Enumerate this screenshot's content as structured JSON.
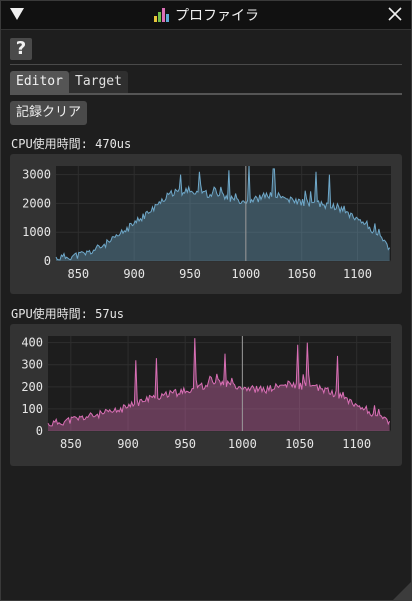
{
  "window": {
    "title": "プロファイラ",
    "app_icon": "bar-chart-icon",
    "collapse_icon": "triangle-down-icon",
    "close_icon": "close-icon"
  },
  "help_label": "?",
  "tabs": [
    {
      "label": "Editor",
      "active": true
    },
    {
      "label": "Target",
      "active": false
    }
  ],
  "clear_button_label": "記録クリア",
  "cpu": {
    "label": "CPU使用時間: 470us",
    "chart_data": {
      "type": "area",
      "xlim": [
        830,
        1130
      ],
      "ylim": [
        0,
        3300
      ],
      "xticks": [
        850,
        900,
        950,
        1000,
        1050,
        1100
      ],
      "yticks": [
        0,
        1000,
        2000,
        3000
      ],
      "grid": true,
      "series": [
        {
          "color": "#6fa8c9"
        }
      ],
      "x": [
        830,
        840,
        850,
        860,
        870,
        880,
        890,
        900,
        910,
        920,
        930,
        940,
        950,
        960,
        970,
        980,
        990,
        1000,
        1010,
        1020,
        1030,
        1040,
        1050,
        1060,
        1070,
        1080,
        1090,
        1100,
        1110,
        1120,
        1130
      ],
      "y": [
        100,
        150,
        200,
        300,
        500,
        700,
        1000,
        1300,
        1600,
        1900,
        2300,
        2400,
        2450,
        2400,
        2300,
        2250,
        2150,
        2100,
        2150,
        2300,
        2250,
        2100,
        2050,
        2000,
        1950,
        1900,
        1700,
        1500,
        1200,
        800,
        400
      ],
      "spikes": [
        {
          "x": 942,
          "y": 3000
        },
        {
          "x": 958,
          "y": 3100
        },
        {
          "x": 985,
          "y": 3150
        },
        {
          "x": 1003,
          "y": 3350
        },
        {
          "x": 1025,
          "y": 3200
        },
        {
          "x": 1063,
          "y": 3100
        },
        {
          "x": 1075,
          "y": 3000
        }
      ],
      "cursor_x": 1000
    }
  },
  "gpu": {
    "label": "GPU使用時間: 57us",
    "chart_data": {
      "type": "area",
      "xlim": [
        830,
        1130
      ],
      "ylim": [
        0,
        430
      ],
      "xticks": [
        850,
        900,
        950,
        1000,
        1050,
        1100
      ],
      "yticks": [
        0,
        100,
        200,
        300,
        400
      ],
      "grid": true,
      "series": [
        {
          "color": "#d96fb5"
        }
      ],
      "x": [
        830,
        840,
        850,
        860,
        870,
        880,
        890,
        900,
        910,
        920,
        930,
        940,
        950,
        960,
        970,
        980,
        990,
        1000,
        1010,
        1020,
        1030,
        1040,
        1050,
        1060,
        1070,
        1080,
        1090,
        1100,
        1110,
        1120,
        1130
      ],
      "y": [
        30,
        40,
        50,
        60,
        70,
        80,
        90,
        110,
        130,
        150,
        160,
        170,
        180,
        200,
        210,
        220,
        215,
        200,
        190,
        185,
        200,
        210,
        205,
        200,
        190,
        170,
        150,
        120,
        90,
        60,
        40
      ],
      "spikes": [
        {
          "x": 907,
          "y": 320
        },
        {
          "x": 925,
          "y": 330
        },
        {
          "x": 958,
          "y": 420
        },
        {
          "x": 985,
          "y": 350
        },
        {
          "x": 1048,
          "y": 390
        },
        {
          "x": 1057,
          "y": 400
        },
        {
          "x": 1083,
          "y": 340
        }
      ],
      "cursor_x": 1000
    }
  }
}
